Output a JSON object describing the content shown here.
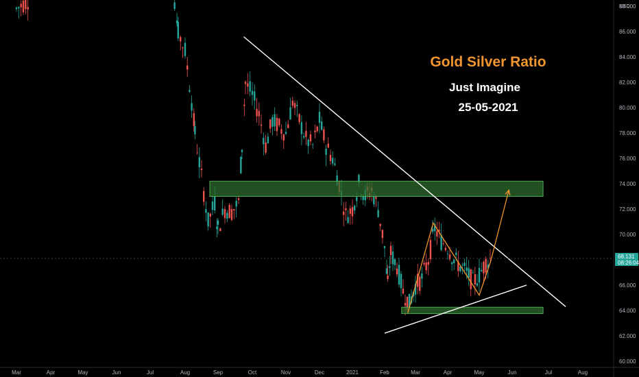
{
  "colors": {
    "background": "#000000",
    "up": "#26a69a",
    "down": "#ef5350",
    "trendline": "#ffffff",
    "pattern": "#f0962d",
    "zone_fill": "#2e6b2e",
    "zone_stroke": "#4caf50",
    "price_tag": "#26a69a"
  },
  "chart_data": {
    "type": "candlestick",
    "title": "Gold Silver Ratio",
    "subtitle": "Just Imagine",
    "date_label": "25-05-2021",
    "currency": "USD",
    "y_range": [
      59.5,
      88.5
    ],
    "y_ticks": [
      "60.000",
      "62.000",
      "64.000",
      "66.000",
      "68.000",
      "70.000",
      "72.000",
      "74.000",
      "76.000",
      "78.000",
      "80.000",
      "82.000",
      "84.000",
      "86.000",
      "88.000"
    ],
    "y_tick_values": [
      60,
      62,
      64,
      66,
      68,
      70,
      72,
      74,
      76,
      78,
      80,
      82,
      84,
      86,
      88
    ],
    "x_ticks": [
      "Mar",
      "Apr",
      "May",
      "Jun",
      "Jul",
      "Aug",
      "Sep",
      "Oct",
      "Nov",
      "Dec",
      "2021",
      "Feb",
      "Mar",
      "Apr",
      "May",
      "Jun",
      "Jul",
      "Aug"
    ],
    "last_price": "68.131",
    "countdown": "08:26:04",
    "close_series": [
      {
        "month_index": 0,
        "value": 87.8
      },
      {
        "month_index": 0.2,
        "value": 88.2
      },
      {
        "month_index": 0.4,
        "value": 88.6
      },
      {
        "month_index": 4.7,
        "value": 88.4
      },
      {
        "month_index": 4.8,
        "value": 86.0
      },
      {
        "month_index": 5.0,
        "value": 84.5
      },
      {
        "month_index": 5.2,
        "value": 80.5
      },
      {
        "month_index": 5.3,
        "value": 78.0
      },
      {
        "month_index": 5.5,
        "value": 74.5
      },
      {
        "month_index": 5.7,
        "value": 71.0
      },
      {
        "month_index": 5.9,
        "value": 72.5
      },
      {
        "month_index": 6.0,
        "value": 70.5
      },
      {
        "month_index": 6.2,
        "value": 72.0
      },
      {
        "month_index": 6.4,
        "value": 71.8
      },
      {
        "month_index": 6.6,
        "value": 72.5
      },
      {
        "month_index": 6.7,
        "value": 77.0
      },
      {
        "month_index": 6.8,
        "value": 82.0
      },
      {
        "month_index": 7.0,
        "value": 81.0
      },
      {
        "month_index": 7.2,
        "value": 79.5
      },
      {
        "month_index": 7.4,
        "value": 77.0
      },
      {
        "month_index": 7.6,
        "value": 79.0
      },
      {
        "month_index": 7.8,
        "value": 78.5
      },
      {
        "month_index": 8.0,
        "value": 78.0
      },
      {
        "month_index": 8.2,
        "value": 80.5
      },
      {
        "month_index": 8.4,
        "value": 79.0
      },
      {
        "month_index": 8.6,
        "value": 77.5
      },
      {
        "month_index": 8.8,
        "value": 77.0
      },
      {
        "month_index": 9.0,
        "value": 79.0
      },
      {
        "month_index": 9.2,
        "value": 77.0
      },
      {
        "month_index": 9.4,
        "value": 76.0
      },
      {
        "month_index": 9.6,
        "value": 74.0
      },
      {
        "month_index": 9.8,
        "value": 71.5
      },
      {
        "month_index": 10.0,
        "value": 72.0
      },
      {
        "month_index": 10.2,
        "value": 74.0
      },
      {
        "month_index": 10.4,
        "value": 73.0
      },
      {
        "month_index": 10.6,
        "value": 73.5
      },
      {
        "month_index": 10.8,
        "value": 72.0
      },
      {
        "month_index": 11.0,
        "value": 69.0
      },
      {
        "month_index": 11.1,
        "value": 66.0
      },
      {
        "month_index": 11.2,
        "value": 68.5
      },
      {
        "month_index": 11.4,
        "value": 67.5
      },
      {
        "month_index": 11.6,
        "value": 65.5
      },
      {
        "month_index": 11.8,
        "value": 64.5
      },
      {
        "month_index": 12.0,
        "value": 66.0
      },
      {
        "month_index": 12.2,
        "value": 66.5
      },
      {
        "month_index": 12.4,
        "value": 68.0
      },
      {
        "month_index": 12.6,
        "value": 70.5
      },
      {
        "month_index": 12.8,
        "value": 69.5
      },
      {
        "month_index": 13.0,
        "value": 69.0
      },
      {
        "month_index": 13.2,
        "value": 68.0
      },
      {
        "month_index": 13.4,
        "value": 67.5
      },
      {
        "month_index": 13.6,
        "value": 67.0
      },
      {
        "month_index": 13.8,
        "value": 66.2
      },
      {
        "month_index": 14.0,
        "value": 66.8
      },
      {
        "month_index": 14.2,
        "value": 67.8
      },
      {
        "month_index": 14.35,
        "value": 68.1
      }
    ],
    "zones": [
      {
        "name": "resistance-zone",
        "x_start": 5.75,
        "x_end": 15.85,
        "y_low": 73.0,
        "y_high": 74.2
      },
      {
        "name": "support-zone",
        "x_start": 11.55,
        "x_end": 15.85,
        "y_low": 63.75,
        "y_high": 64.25
      }
    ],
    "lines": [
      {
        "name": "descending-trendline",
        "x1": 6.75,
        "y1": 85.6,
        "x2": 16.5,
        "y2": 64.3,
        "color": "trendline"
      },
      {
        "name": "ascending-trendline",
        "x1": 11.0,
        "y1": 62.2,
        "x2": 15.4,
        "y2": 66.0,
        "color": "trendline"
      }
    ],
    "pattern_path": [
      {
        "x": 11.75,
        "y": 63.8
      },
      {
        "x": 12.55,
        "y": 70.9
      },
      {
        "x": 14.0,
        "y": 65.2
      },
      {
        "x": 14.35,
        "y": 67.9
      },
      {
        "x": 14.9,
        "y": 73.5
      }
    ]
  }
}
